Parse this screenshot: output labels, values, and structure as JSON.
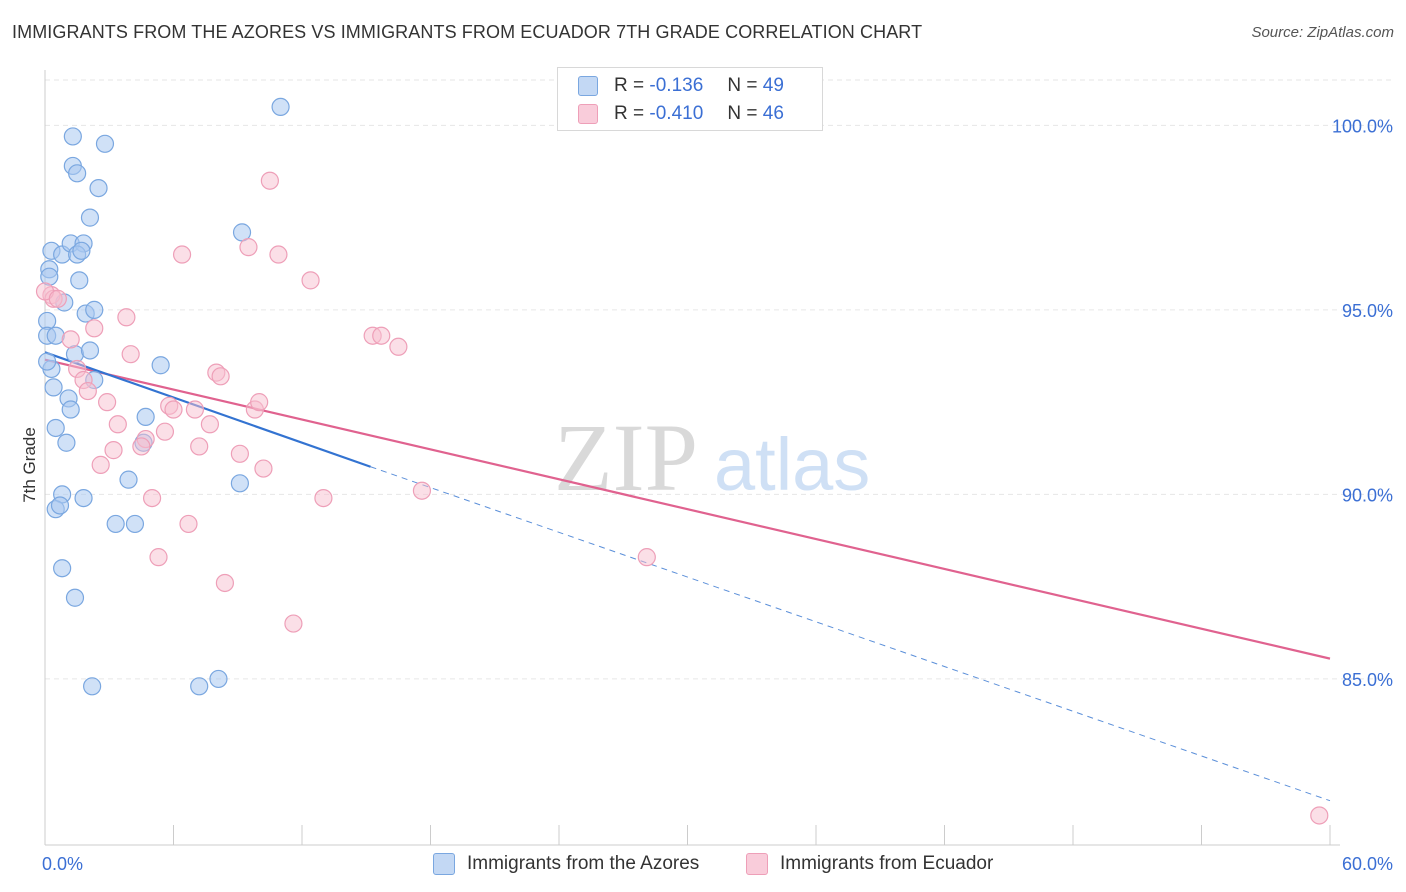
{
  "header": {
    "title": "IMMIGRANTS FROM THE AZORES VS IMMIGRANTS FROM ECUADOR 7TH GRADE CORRELATION CHART",
    "source": "Source: ZipAtlas.com"
  },
  "watermark": {
    "zip": "ZIP",
    "atlas": "atlas"
  },
  "colors": {
    "azores_fill": "#a9c8f0",
    "azores_stroke": "#7aa7e0",
    "azores_line": "#3373d1",
    "ecuador_fill": "#f7bfd0",
    "ecuador_stroke": "#ee9fb8",
    "ecuador_line": "#e0628f",
    "axis_label": "#3b6fd4",
    "grid": "#e6e6e6"
  },
  "legend": {
    "rows": [
      {
        "r_label": "R =",
        "r_value": "-0.136",
        "n_label": "N =",
        "n_value": "49"
      },
      {
        "r_label": "R =",
        "r_value": "-0.410",
        "n_label": "N =",
        "n_value": "46"
      }
    ]
  },
  "bottom_legend": {
    "azores": "Immigrants from the Azores",
    "ecuador": "Immigrants from Ecuador"
  },
  "chart_data": {
    "type": "scatter",
    "title": "IMMIGRANTS FROM THE AZORES VS IMMIGRANTS FROM ECUADOR 7TH GRADE CORRELATION CHART",
    "xlabel": "",
    "ylabel": "7th Grade",
    "xlim": [
      0,
      60
    ],
    "ylim": [
      80.5,
      101.5
    ],
    "x_tick_labels": [
      "0.0%",
      "60.0%"
    ],
    "y_ticks": [
      85,
      90,
      95,
      100
    ],
    "y_tick_labels": [
      "85.0%",
      "90.0%",
      "95.0%",
      "100.0%"
    ],
    "series": [
      {
        "name": "Immigrants from the Azores",
        "points": [
          [
            11.0,
            100.5
          ],
          [
            1.3,
            99.7
          ],
          [
            2.8,
            99.5
          ],
          [
            1.3,
            98.9
          ],
          [
            1.5,
            98.7
          ],
          [
            2.5,
            98.3
          ],
          [
            2.1,
            97.5
          ],
          [
            9.2,
            97.1
          ],
          [
            0.3,
            96.6
          ],
          [
            0.8,
            96.5
          ],
          [
            1.2,
            96.8
          ],
          [
            1.8,
            96.8
          ],
          [
            1.5,
            96.5
          ],
          [
            1.7,
            96.6
          ],
          [
            0.2,
            96.1
          ],
          [
            1.6,
            95.8
          ],
          [
            0.9,
            95.2
          ],
          [
            1.9,
            94.9
          ],
          [
            2.3,
            95.0
          ],
          [
            0.1,
            94.7
          ],
          [
            0.1,
            94.3
          ],
          [
            0.5,
            94.3
          ],
          [
            1.4,
            93.8
          ],
          [
            2.1,
            93.9
          ],
          [
            5.4,
            93.5
          ],
          [
            0.3,
            93.4
          ],
          [
            0.1,
            93.6
          ],
          [
            2.3,
            93.1
          ],
          [
            0.4,
            92.9
          ],
          [
            1.1,
            92.6
          ],
          [
            1.2,
            92.3
          ],
          [
            4.7,
            92.1
          ],
          [
            0.5,
            91.8
          ],
          [
            1.0,
            91.4
          ],
          [
            4.6,
            91.4
          ],
          [
            3.9,
            90.4
          ],
          [
            9.1,
            90.3
          ],
          [
            0.8,
            90.0
          ],
          [
            1.8,
            89.9
          ],
          [
            0.5,
            89.6
          ],
          [
            0.7,
            89.7
          ],
          [
            3.3,
            89.2
          ],
          [
            4.2,
            89.2
          ],
          [
            0.8,
            88.0
          ],
          [
            1.4,
            87.2
          ],
          [
            2.2,
            84.8
          ],
          [
            7.2,
            84.8
          ],
          [
            8.1,
            85.0
          ],
          [
            0.2,
            95.9
          ]
        ],
        "trend": {
          "x": [
            0.0,
            15.2
          ],
          "y": [
            93.85,
            90.75
          ]
        },
        "trend_dashed": {
          "x": [
            15.2,
            60.0
          ],
          "y": [
            90.75,
            81.7
          ]
        }
      },
      {
        "name": "Immigrants from Ecuador",
        "points": [
          [
            10.5,
            98.5
          ],
          [
            9.5,
            96.7
          ],
          [
            6.4,
            96.5
          ],
          [
            10.9,
            96.5
          ],
          [
            12.4,
            95.8
          ],
          [
            0.3,
            95.4
          ],
          [
            0.4,
            95.3
          ],
          [
            3.8,
            94.8
          ],
          [
            2.3,
            94.5
          ],
          [
            15.3,
            94.3
          ],
          [
            15.7,
            94.3
          ],
          [
            16.5,
            94.0
          ],
          [
            1.2,
            94.2
          ],
          [
            4.0,
            93.8
          ],
          [
            1.5,
            93.4
          ],
          [
            8.0,
            93.3
          ],
          [
            8.2,
            93.2
          ],
          [
            1.8,
            93.1
          ],
          [
            2.0,
            92.8
          ],
          [
            2.9,
            92.5
          ],
          [
            5.8,
            92.4
          ],
          [
            6.0,
            92.3
          ],
          [
            7.0,
            92.3
          ],
          [
            9.8,
            92.3
          ],
          [
            10.0,
            92.5
          ],
          [
            3.4,
            91.9
          ],
          [
            7.7,
            91.9
          ],
          [
            5.6,
            91.7
          ],
          [
            4.7,
            91.5
          ],
          [
            7.2,
            91.3
          ],
          [
            9.1,
            91.1
          ],
          [
            3.2,
            91.2
          ],
          [
            4.5,
            91.3
          ],
          [
            2.6,
            90.8
          ],
          [
            10.2,
            90.7
          ],
          [
            5.0,
            89.9
          ],
          [
            13.0,
            89.9
          ],
          [
            17.6,
            90.1
          ],
          [
            6.7,
            89.2
          ],
          [
            5.3,
            88.3
          ],
          [
            28.1,
            88.3
          ],
          [
            8.4,
            87.6
          ],
          [
            11.6,
            86.5
          ],
          [
            59.5,
            81.3
          ],
          [
            0.0,
            95.5
          ],
          [
            0.6,
            95.3
          ]
        ],
        "trend": {
          "x": [
            0.0,
            60.0
          ],
          "y": [
            93.65,
            85.55
          ]
        }
      }
    ]
  }
}
